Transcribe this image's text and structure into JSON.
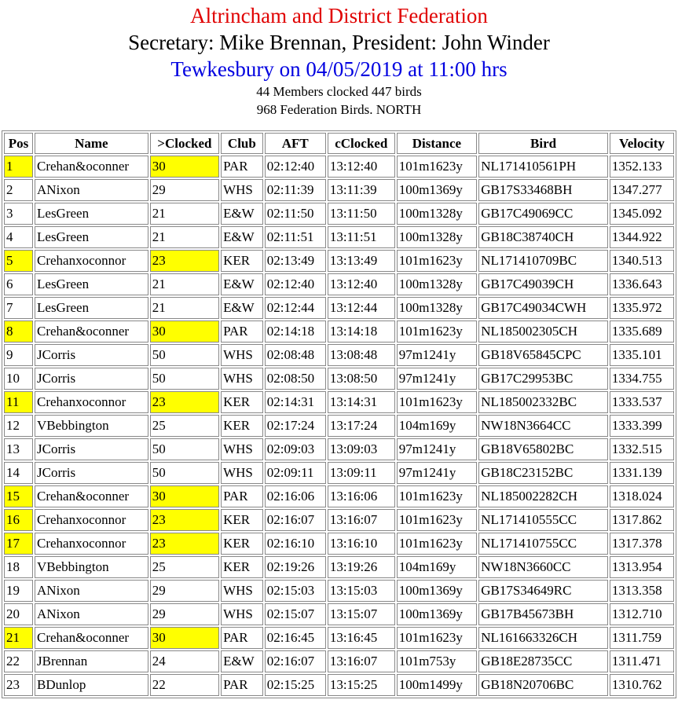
{
  "header": {
    "federation": "Altrincham and District Federation",
    "officers": "Secretary: Mike Brennan, President: John Winder",
    "race": "Tewkesbury on 04/05/2019 at 11:00 hrs",
    "summary1": "44 Members clocked 447 birds",
    "summary2": "968 Federation Birds. NORTH"
  },
  "colors": {
    "title": "#e00000",
    "race": "#0000e0",
    "highlight": "#ffff00"
  },
  "table": {
    "columns": [
      "Pos",
      "Name",
      ">Clocked",
      "Club",
      "AFT",
      "cClocked",
      "Distance",
      "Bird",
      "Velocity"
    ],
    "rows": [
      {
        "cells": [
          "1",
          "Crehan&oconner",
          "30",
          "PAR",
          "02:12:40",
          "13:12:40",
          "101m1623y",
          "NL171410561PH",
          "1352.133"
        ],
        "highlight": true
      },
      {
        "cells": [
          "2",
          "ANixon",
          "29",
          "WHS",
          "02:11:39",
          "13:11:39",
          "100m1369y",
          "GB17S33468BH",
          "1347.277"
        ],
        "highlight": false
      },
      {
        "cells": [
          "3",
          "LesGreen",
          "21",
          "E&W",
          "02:11:50",
          "13:11:50",
          "100m1328y",
          "GB17C49069CC",
          "1345.092"
        ],
        "highlight": false
      },
      {
        "cells": [
          "4",
          "LesGreen",
          "21",
          "E&W",
          "02:11:51",
          "13:11:51",
          "100m1328y",
          "GB18C38740CH",
          "1344.922"
        ],
        "highlight": false
      },
      {
        "cells": [
          "5",
          "Crehanxoconnor",
          "23",
          "KER",
          "02:13:49",
          "13:13:49",
          "101m1623y",
          "NL171410709BC",
          "1340.513"
        ],
        "highlight": true
      },
      {
        "cells": [
          "6",
          "LesGreen",
          "21",
          "E&W",
          "02:12:40",
          "13:12:40",
          "100m1328y",
          "GB17C49039CH",
          "1336.643"
        ],
        "highlight": false
      },
      {
        "cells": [
          "7",
          "LesGreen",
          "21",
          "E&W",
          "02:12:44",
          "13:12:44",
          "100m1328y",
          "GB17C49034CWH",
          "1335.972"
        ],
        "highlight": false
      },
      {
        "cells": [
          "8",
          "Crehan&oconner",
          "30",
          "PAR",
          "02:14:18",
          "13:14:18",
          "101m1623y",
          "NL185002305CH",
          "1335.689"
        ],
        "highlight": true
      },
      {
        "cells": [
          "9",
          "JCorris",
          "50",
          "WHS",
          "02:08:48",
          "13:08:48",
          "97m1241y",
          "GB18V65845CPC",
          "1335.101"
        ],
        "highlight": false
      },
      {
        "cells": [
          "10",
          "JCorris",
          "50",
          "WHS",
          "02:08:50",
          "13:08:50",
          "97m1241y",
          "GB17C29953BC",
          "1334.755"
        ],
        "highlight": false
      },
      {
        "cells": [
          "11",
          "Crehanxoconnor",
          "23",
          "KER",
          "02:14:31",
          "13:14:31",
          "101m1623y",
          "NL185002332BC",
          "1333.537"
        ],
        "highlight": true
      },
      {
        "cells": [
          "12",
          "VBebbington",
          "25",
          "KER",
          "02:17:24",
          "13:17:24",
          "104m169y",
          "NW18N3664CC",
          "1333.399"
        ],
        "highlight": false
      },
      {
        "cells": [
          "13",
          "JCorris",
          "50",
          "WHS",
          "02:09:03",
          "13:09:03",
          "97m1241y",
          "GB18V65802BC",
          "1332.515"
        ],
        "highlight": false
      },
      {
        "cells": [
          "14",
          "JCorris",
          "50",
          "WHS",
          "02:09:11",
          "13:09:11",
          "97m1241y",
          "GB18C23152BC",
          "1331.139"
        ],
        "highlight": false
      },
      {
        "cells": [
          "15",
          "Crehan&oconner",
          "30",
          "PAR",
          "02:16:06",
          "13:16:06",
          "101m1623y",
          "NL185002282CH",
          "1318.024"
        ],
        "highlight": true
      },
      {
        "cells": [
          "16",
          "Crehanxoconnor",
          "23",
          "KER",
          "02:16:07",
          "13:16:07",
          "101m1623y",
          "NL171410555CC",
          "1317.862"
        ],
        "highlight": true
      },
      {
        "cells": [
          "17",
          "Crehanxoconnor",
          "23",
          "KER",
          "02:16:10",
          "13:16:10",
          "101m1623y",
          "NL171410755CC",
          "1317.378"
        ],
        "highlight": true
      },
      {
        "cells": [
          "18",
          "VBebbington",
          "25",
          "KER",
          "02:19:26",
          "13:19:26",
          "104m169y",
          "NW18N3660CC",
          "1313.954"
        ],
        "highlight": false
      },
      {
        "cells": [
          "19",
          "ANixon",
          "29",
          "WHS",
          "02:15:03",
          "13:15:03",
          "100m1369y",
          "GB17S34649RC",
          "1313.358"
        ],
        "highlight": false
      },
      {
        "cells": [
          "20",
          "ANixon",
          "29",
          "WHS",
          "02:15:07",
          "13:15:07",
          "100m1369y",
          "GB17B45673BH",
          "1312.710"
        ],
        "highlight": false
      },
      {
        "cells": [
          "21",
          "Crehan&oconner",
          "30",
          "PAR",
          "02:16:45",
          "13:16:45",
          "101m1623y",
          "NL161663326CH",
          "1311.759"
        ],
        "highlight": true
      },
      {
        "cells": [
          "22",
          "JBrennan",
          "24",
          "E&W",
          "02:16:07",
          "13:16:07",
          "101m753y",
          "GB18E28735CC",
          "1311.471"
        ],
        "highlight": false
      },
      {
        "cells": [
          "23",
          "BDunlop",
          "22",
          "PAR",
          "02:15:25",
          "13:15:25",
          "100m1499y",
          "GB18N20706BC",
          "1310.762"
        ],
        "highlight": false
      }
    ]
  }
}
